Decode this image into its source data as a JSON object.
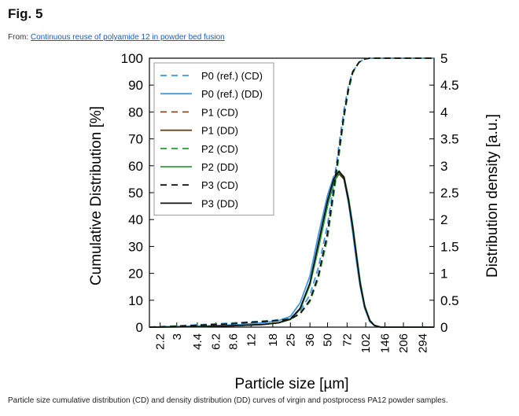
{
  "figure": {
    "label": "Fig. 5",
    "source_prefix": "From:",
    "source_link": "Continuous reuse of polyamide 12 in powder bed fusion",
    "caption": "Particle size cumulative distribution (CD) and density distribution (DD) curves of virgin and postprocess PA12 powder samples."
  },
  "chart_data": {
    "type": "line",
    "xlabel": "Particle size [µm]",
    "ylabel": "Cumulative Distribution [%]",
    "y2label": "Distribution density [a.u.]",
    "x_scale": "log",
    "xlim": [
      1.8,
      365
    ],
    "ylim": [
      0,
      100
    ],
    "y2lim": [
      0,
      5
    ],
    "x_ticks": [
      2.2,
      3,
      4.4,
      6.2,
      8.6,
      12,
      18,
      25,
      36,
      50,
      72,
      102,
      146,
      206,
      294
    ],
    "x_tick_labels": [
      "2.2",
      "3",
      "4.4",
      "6.2",
      "8.6",
      "12",
      "18",
      "25",
      "36",
      "50",
      "72",
      "102",
      "146",
      "206",
      "294"
    ],
    "y_ticks": [
      0,
      10,
      20,
      30,
      40,
      50,
      60,
      70,
      80,
      90,
      100
    ],
    "y_tick_labels": [
      "0",
      "10",
      "20",
      "30",
      "40",
      "50",
      "60",
      "70",
      "80",
      "90",
      "100"
    ],
    "y2_ticks": [
      0,
      0.5,
      1,
      1.5,
      2,
      2.5,
      3,
      3.5,
      4,
      4.5,
      5
    ],
    "y2_tick_labels": [
      "0",
      "0.5",
      "1",
      "1.5",
      "2",
      "2.5",
      "3",
      "3.5",
      "4",
      "4.5",
      "5"
    ],
    "grid": false,
    "legend_position": "top-left",
    "series": [
      {
        "name": "P0 (ref.) (CD)",
        "color": "#3b9ae1",
        "dash": "dashed",
        "axis": "left",
        "x": [
          1.8,
          3,
          5,
          8,
          12,
          18,
          25,
          30,
          36,
          42,
          50,
          56,
          62,
          68,
          74,
          80,
          90,
          100,
          110,
          365
        ],
        "y": [
          0,
          0.5,
          1,
          1.5,
          2,
          2.5,
          3.5,
          6,
          12,
          22,
          38,
          53,
          68,
          81,
          90,
          95,
          98.5,
          99.7,
          100,
          100
        ]
      },
      {
        "name": "P0 (ref.) (DD)",
        "color": "#3b9ae1",
        "dash": "solid",
        "axis": "right",
        "x": [
          1.8,
          5,
          10,
          15,
          20,
          25,
          30,
          36,
          42,
          50,
          56,
          62,
          68,
          74,
          80,
          86,
          92,
          100,
          110,
          120,
          135,
          365
        ],
        "y": [
          0,
          0.02,
          0.05,
          0.08,
          0.12,
          0.2,
          0.45,
          0.95,
          1.7,
          2.45,
          2.8,
          2.9,
          2.75,
          2.3,
          1.75,
          1.2,
          0.75,
          0.35,
          0.1,
          0.03,
          0,
          0
        ]
      },
      {
        "name": "P1 (CD)",
        "color": "#8b4a1a",
        "dash": "dashed",
        "axis": "left",
        "x": [
          1.8,
          3,
          5,
          8,
          12,
          18,
          25,
          30,
          36,
          42,
          50,
          56,
          62,
          68,
          74,
          80,
          90,
          100,
          110,
          365
        ],
        "y": [
          0,
          0.3,
          0.8,
          1.2,
          1.8,
          2.3,
          3,
          5,
          10,
          19,
          34,
          50,
          65,
          79,
          89,
          95,
          98.5,
          99.7,
          100,
          100
        ]
      },
      {
        "name": "P1 (DD)",
        "color": "#5c3a10",
        "dash": "solid",
        "axis": "right",
        "x": [
          1.8,
          5,
          10,
          15,
          20,
          25,
          30,
          36,
          42,
          50,
          56,
          62,
          68,
          74,
          80,
          86,
          92,
          100,
          110,
          120,
          135,
          365
        ],
        "y": [
          0,
          0.01,
          0.03,
          0.05,
          0.08,
          0.15,
          0.35,
          0.8,
          1.5,
          2.3,
          2.7,
          2.85,
          2.75,
          2.35,
          1.85,
          1.3,
          0.8,
          0.38,
          0.12,
          0.03,
          0,
          0
        ]
      },
      {
        "name": "P2 (CD)",
        "color": "#2e9e3a",
        "dash": "dashed",
        "axis": "left",
        "x": [
          1.8,
          3,
          5,
          8,
          12,
          18,
          25,
          30,
          36,
          42,
          50,
          56,
          62,
          68,
          74,
          80,
          90,
          100,
          110,
          365
        ],
        "y": [
          0,
          0.3,
          0.8,
          1.2,
          1.8,
          2.3,
          3,
          5,
          9.5,
          18,
          33,
          49,
          64,
          78,
          88,
          94.5,
          98.5,
          99.7,
          100,
          100
        ]
      },
      {
        "name": "P2 (DD)",
        "color": "#2e9e3a",
        "dash": "solid",
        "axis": "right",
        "x": [
          1.8,
          5,
          10,
          15,
          20,
          25,
          30,
          36,
          42,
          50,
          56,
          62,
          68,
          74,
          80,
          86,
          92,
          100,
          110,
          120,
          135,
          365
        ],
        "y": [
          0,
          0.01,
          0.03,
          0.05,
          0.08,
          0.14,
          0.33,
          0.78,
          1.45,
          2.25,
          2.68,
          2.88,
          2.8,
          2.4,
          1.9,
          1.35,
          0.85,
          0.4,
          0.13,
          0.03,
          0,
          0
        ]
      },
      {
        "name": "P3 (CD)",
        "color": "#111111",
        "dash": "dashed",
        "axis": "left",
        "x": [
          1.8,
          3,
          5,
          8,
          12,
          18,
          25,
          30,
          36,
          42,
          50,
          56,
          62,
          68,
          74,
          80,
          90,
          100,
          110,
          365
        ],
        "y": [
          0,
          0.3,
          0.8,
          1.2,
          1.8,
          2.3,
          3,
          5,
          10,
          19,
          35,
          51,
          66,
          79,
          89,
          95,
          98.5,
          99.7,
          100,
          100
        ]
      },
      {
        "name": "P3 (DD)",
        "color": "#111111",
        "dash": "solid",
        "axis": "right",
        "x": [
          1.8,
          5,
          10,
          15,
          20,
          25,
          30,
          36,
          42,
          50,
          56,
          62,
          68,
          74,
          80,
          86,
          92,
          100,
          110,
          120,
          135,
          365
        ],
        "y": [
          0,
          0.01,
          0.03,
          0.05,
          0.08,
          0.15,
          0.35,
          0.82,
          1.55,
          2.35,
          2.75,
          2.9,
          2.78,
          2.35,
          1.85,
          1.3,
          0.8,
          0.38,
          0.12,
          0.03,
          0,
          0
        ]
      }
    ]
  }
}
